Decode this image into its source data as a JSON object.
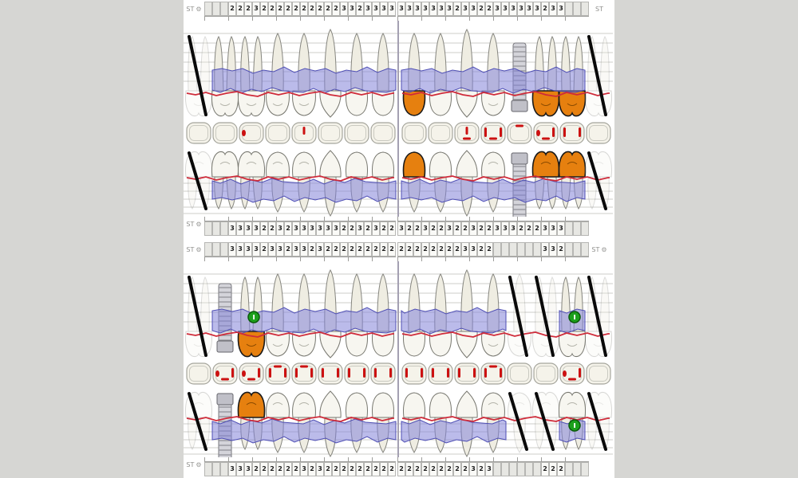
{
  "labels": {
    "st": "ST",
    "gear_icon": "⚙"
  },
  "colors": {
    "page_bg": "#d6d6d3",
    "chart_bg": "#ffffff",
    "grid_line": "#cdcdc9",
    "band_fill": "#8484d8",
    "band_border": "#4e4eb4",
    "gingiva_red": "#cf2b3a",
    "crown_orange": "#e6800f",
    "tooth_fill": "#f7f6f0",
    "root_fill": "#efede2",
    "tooth_outline": "#85857f",
    "missing_black": "#0a0a0a",
    "marker_green": "#1ca01c",
    "implant_gray": "#d4d4da",
    "red_mark": "#cc1111"
  },
  "sections": [
    {
      "name": "upper-arch",
      "probing_rows": {
        "top": {
          "left_label": "ST",
          "left_gear": true,
          "right_label": "ST",
          "right_gear": false,
          "left_values": [
            "",
            "",
            "",
            "2",
            "2",
            "2",
            "3",
            "2",
            "2",
            "2",
            "2",
            "2",
            "2",
            "2",
            "2",
            "2",
            "2",
            "3",
            "3",
            "2",
            "3",
            "3",
            "3",
            "3"
          ],
          "right_values": [
            "3",
            "3",
            "3",
            "3",
            "3",
            "3",
            "3",
            "2",
            "3",
            "3",
            "2",
            "2",
            "3",
            "3",
            "3",
            "3",
            "3",
            "3",
            "2",
            "3",
            "3",
            "",
            "",
            ""
          ]
        },
        "bottom": {
          "left_label": "ST",
          "left_gear": true,
          "right_label": "",
          "right_gear": false,
          "left_values": [
            "",
            "",
            "",
            "3",
            "3",
            "3",
            "3",
            "2",
            "2",
            "3",
            "2",
            "3",
            "3",
            "3",
            "3",
            "3",
            "3",
            "2",
            "2",
            "3",
            "2",
            "3",
            "2",
            "2"
          ],
          "right_values": [
            "3",
            "2",
            "2",
            "3",
            "2",
            "2",
            "3",
            "2",
            "2",
            "3",
            "2",
            "2",
            "3",
            "3",
            "3",
            "2",
            "2",
            "2",
            "3",
            "3",
            "3",
            "",
            "",
            ""
          ]
        }
      },
      "quadrants": {
        "left": {
          "blue_segments": [
            [
              1,
              7
            ]
          ],
          "teeth": [
            {
              "type": "molar",
              "status": "missing",
              "occlusal": []
            },
            {
              "type": "molar",
              "status": "present",
              "occlusal": []
            },
            {
              "type": "molar",
              "status": "present",
              "occlusal": [
                "dl"
              ]
            },
            {
              "type": "premolar",
              "status": "present",
              "occlusal": []
            },
            {
              "type": "premolar",
              "status": "present",
              "occlusal": [
                "c"
              ]
            },
            {
              "type": "canine",
              "status": "present",
              "occlusal": []
            },
            {
              "type": "incisor",
              "status": "present",
              "occlusal": []
            },
            {
              "type": "incisor",
              "status": "present",
              "occlusal": []
            }
          ]
        },
        "right": {
          "blue_segments": [
            [
              0,
              6
            ]
          ],
          "teeth": [
            {
              "type": "incisor",
              "status": "present",
              "crown": "orange",
              "occlusal": []
            },
            {
              "type": "incisor",
              "status": "present",
              "occlusal": []
            },
            {
              "type": "canine",
              "status": "present",
              "occlusal": [
                "c",
                "b"
              ]
            },
            {
              "type": "premolar",
              "status": "present",
              "occlusal": [
                "l",
                "b",
                "r"
              ]
            },
            {
              "type": "premolar",
              "status": "implant",
              "occlusal": [
                "t"
              ]
            },
            {
              "type": "molar",
              "status": "present",
              "crown": "orange",
              "occlusal": [
                "dl",
                "b",
                "r"
              ]
            },
            {
              "type": "molar",
              "status": "present",
              "crown": "orange",
              "occlusal": [
                "l",
                "r"
              ]
            },
            {
              "type": "molar",
              "status": "missing",
              "occlusal": []
            }
          ]
        }
      }
    },
    {
      "name": "lower-arch",
      "probing_rows": {
        "top": {
          "left_label": "ST",
          "left_gear": true,
          "right_label": "ST",
          "right_gear": true,
          "left_values": [
            "",
            "",
            "",
            "3",
            "3",
            "3",
            "3",
            "2",
            "3",
            "3",
            "2",
            "3",
            "3",
            "2",
            "3",
            "2",
            "2",
            "2",
            "2",
            "2",
            "2",
            "2",
            "2",
            "2"
          ],
          "right_values": [
            "2",
            "2",
            "2",
            "2",
            "2",
            "2",
            "2",
            "2",
            "3",
            "3",
            "2",
            "2",
            "",
            "",
            "",
            "",
            "",
            "",
            "3",
            "3",
            "2",
            "",
            "",
            ""
          ]
        },
        "bottom": {
          "left_label": "ST",
          "left_gear": true,
          "right_label": "",
          "right_gear": false,
          "left_values": [
            "",
            "",
            "",
            "3",
            "3",
            "3",
            "2",
            "2",
            "2",
            "2",
            "2",
            "2",
            "3",
            "2",
            "3",
            "2",
            "2",
            "2",
            "2",
            "2",
            "2",
            "2",
            "2",
            "2"
          ],
          "right_values": [
            "2",
            "2",
            "2",
            "2",
            "2",
            "2",
            "2",
            "2",
            "2",
            "3",
            "2",
            "3",
            "",
            "",
            "",
            "",
            "",
            "",
            "2",
            "2",
            "2",
            "",
            "",
            ""
          ]
        }
      },
      "quadrants": {
        "left": {
          "blue_segments": [
            [
              1,
              7
            ]
          ],
          "teeth": [
            {
              "type": "molar",
              "status": "missing",
              "occlusal": []
            },
            {
              "type": "molar",
              "status": "implant",
              "occlusal": [
                "dl",
                "b",
                "r"
              ]
            },
            {
              "type": "molar",
              "status": "present",
              "crown": "orange",
              "marker": "row1",
              "occlusal": [
                "dl",
                "b",
                "r"
              ]
            },
            {
              "type": "premolar",
              "status": "present",
              "occlusal": [
                "l",
                "t",
                "r"
              ]
            },
            {
              "type": "premolar",
              "status": "present",
              "occlusal": [
                "l",
                "t",
                "r"
              ]
            },
            {
              "type": "canine",
              "status": "present",
              "occlusal": [
                "l",
                "r"
              ]
            },
            {
              "type": "incisor",
              "status": "present",
              "occlusal": [
                "l",
                "r"
              ]
            },
            {
              "type": "incisor",
              "status": "present",
              "occlusal": [
                "l",
                "r"
              ]
            }
          ]
        },
        "right": {
          "blue_segments": [
            [
              0,
              3
            ],
            [
              6,
              6
            ]
          ],
          "teeth": [
            {
              "type": "incisor",
              "status": "present",
              "occlusal": [
                "l",
                "r"
              ]
            },
            {
              "type": "incisor",
              "status": "present",
              "occlusal": [
                "l",
                "r"
              ]
            },
            {
              "type": "canine",
              "status": "present",
              "occlusal": [
                "l",
                "r"
              ]
            },
            {
              "type": "premolar",
              "status": "present",
              "occlusal": [
                "l",
                "t",
                "r"
              ]
            },
            {
              "type": "premolar",
              "status": "missing",
              "occlusal": []
            },
            {
              "type": "molar",
              "status": "missing",
              "occlusal": []
            },
            {
              "type": "molar",
              "status": "present",
              "marker": "both",
              "occlusal": [
                "dl",
                "r",
                "b"
              ]
            },
            {
              "type": "molar",
              "status": "missing",
              "occlusal": []
            }
          ]
        }
      }
    }
  ]
}
